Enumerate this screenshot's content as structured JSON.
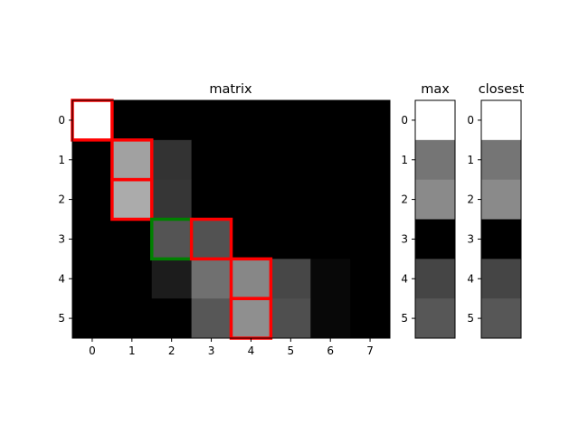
{
  "chart_data": [
    {
      "type": "heatmap",
      "title": "matrix",
      "x_ticks": [
        "0",
        "1",
        "2",
        "3",
        "4",
        "5",
        "6",
        "7"
      ],
      "y_ticks": [
        "0",
        "1",
        "2",
        "3",
        "4",
        "5"
      ],
      "colormap": "gray",
      "values": [
        [
          1.0,
          0.0,
          0.0,
          0.0,
          0.0,
          0.0,
          0.0,
          0.0
        ],
        [
          0.0,
          0.63,
          0.2,
          0.0,
          0.0,
          0.0,
          0.0,
          0.0
        ],
        [
          0.0,
          0.67,
          0.21,
          0.0,
          0.0,
          0.0,
          0.0,
          0.0
        ],
        [
          0.0,
          0.0,
          0.33,
          0.32,
          0.0,
          0.0,
          0.0,
          0.0
        ],
        [
          0.0,
          0.0,
          0.11,
          0.44,
          0.53,
          0.28,
          0.03,
          0.0
        ],
        [
          0.0,
          0.0,
          0.0,
          0.34,
          0.56,
          0.31,
          0.03,
          0.0
        ]
      ],
      "highlights": [
        {
          "row": 0,
          "col": 0,
          "color": "#ff0000"
        },
        {
          "row": 1,
          "col": 1,
          "color": "#ff0000"
        },
        {
          "row": 2,
          "col": 1,
          "color": "#ff0000"
        },
        {
          "row": 3,
          "col": 2,
          "color": "#008000"
        },
        {
          "row": 3,
          "col": 3,
          "color": "#ff0000"
        },
        {
          "row": 4,
          "col": 4,
          "color": "#ff0000"
        },
        {
          "row": 5,
          "col": 4,
          "color": "#ff0000"
        }
      ]
    },
    {
      "type": "heatmap",
      "title": "max",
      "y_ticks": [
        "0",
        "1",
        "2",
        "3",
        "4",
        "5"
      ],
      "colormap": "gray",
      "values": [
        1.0,
        0.46,
        0.54,
        0.0,
        0.27,
        0.34
      ]
    },
    {
      "type": "heatmap",
      "title": "closest",
      "y_ticks": [
        "0",
        "1",
        "2",
        "3",
        "4",
        "5"
      ],
      "colormap": "gray",
      "values": [
        1.0,
        0.46,
        0.54,
        0.0,
        0.27,
        0.34
      ]
    }
  ]
}
